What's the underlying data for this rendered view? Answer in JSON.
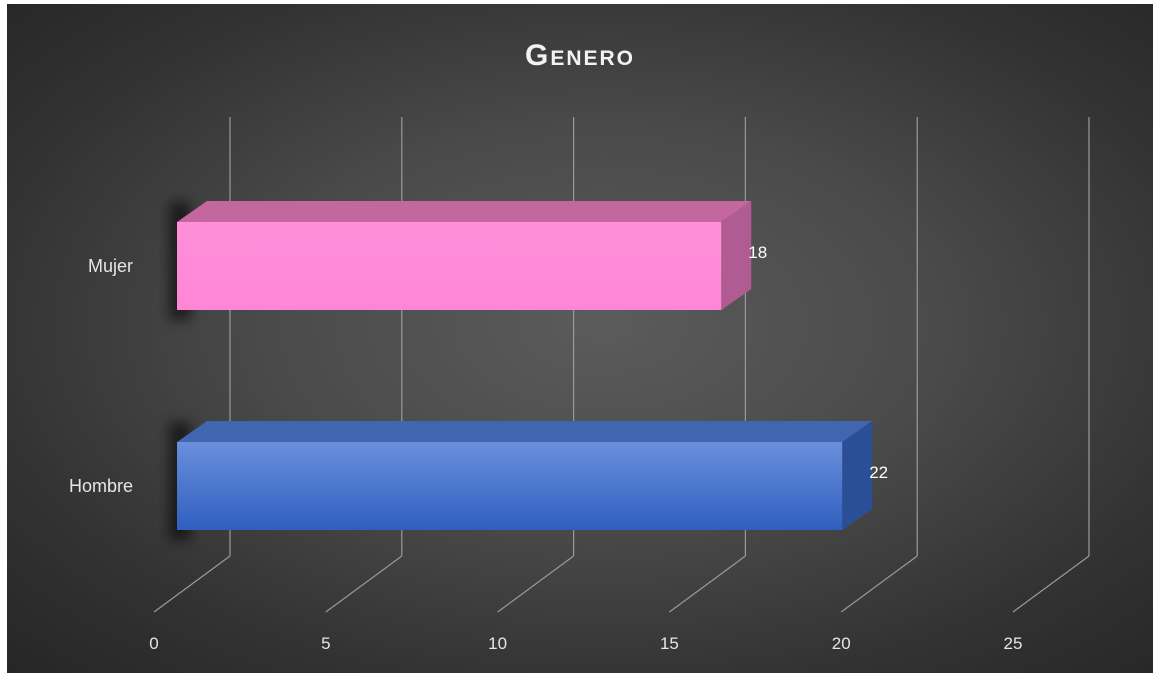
{
  "chart_data": {
    "type": "bar",
    "orientation": "horizontal",
    "style": "3d",
    "title": "Genero",
    "categories": [
      "Mujer",
      "Hombre"
    ],
    "values": [
      18,
      22
    ],
    "data_labels": [
      "18",
      "22"
    ],
    "xlim": [
      0,
      25
    ],
    "x_ticks": [
      "0",
      "5",
      "10",
      "15",
      "20",
      "25"
    ],
    "xlabel": "",
    "ylabel": "",
    "grid": true,
    "legend": "none",
    "colors": {
      "Mujer": "#ff8ad8",
      "Hombre": "#3f74d4",
      "background": "#4a4a4a",
      "text": "#e6e6e6"
    }
  }
}
